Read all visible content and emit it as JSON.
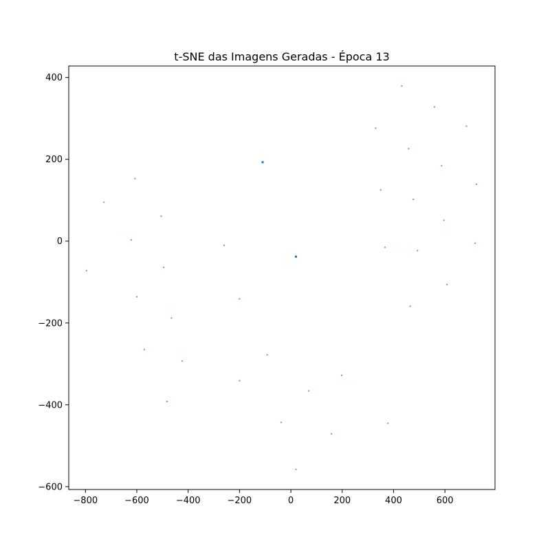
{
  "chart_data": {
    "type": "scatter",
    "title": "t-SNE das Imagens Geradas - Época 13",
    "xlabel": "",
    "ylabel": "",
    "xlim": [
      -865,
      795
    ],
    "ylim": [
      -607,
      428
    ],
    "xticks": [
      -800,
      -600,
      -400,
      -200,
      0,
      200,
      400,
      600
    ],
    "yticks": [
      -600,
      -400,
      -200,
      0,
      200,
      400
    ],
    "grid": false,
    "point_color": "#1f77b4",
    "series": [
      {
        "points": [
          {
            "x": -796,
            "y": -72
          },
          {
            "x": -728,
            "y": 95
          },
          {
            "x": -607,
            "y": 153
          },
          {
            "x": -622,
            "y": 3
          },
          {
            "x": -600,
            "y": -136
          },
          {
            "x": -571,
            "y": -265
          },
          {
            "x": -505,
            "y": 61
          },
          {
            "x": -495,
            "y": -64
          },
          {
            "x": -482,
            "y": -392
          },
          {
            "x": -465,
            "y": -188
          },
          {
            "x": -423,
            "y": -293
          },
          {
            "x": -260,
            "y": -10
          },
          {
            "x": -200,
            "y": -141
          },
          {
            "x": -200,
            "y": -341
          },
          {
            "x": -110,
            "y": 193,
            "highlight": true
          },
          {
            "x": -92,
            "y": -278
          },
          {
            "x": -38,
            "y": -443
          },
          {
            "x": 20,
            "y": -38,
            "highlight": true
          },
          {
            "x": 20,
            "y": -558
          },
          {
            "x": 70,
            "y": -366
          },
          {
            "x": 158,
            "y": -471
          },
          {
            "x": 198,
            "y": -328
          },
          {
            "x": 330,
            "y": 276
          },
          {
            "x": 350,
            "y": 125
          },
          {
            "x": 367,
            "y": -15
          },
          {
            "x": 378,
            "y": -445
          },
          {
            "x": 432,
            "y": 379
          },
          {
            "x": 459,
            "y": 226
          },
          {
            "x": 465,
            "y": -159
          },
          {
            "x": 477,
            "y": 102
          },
          {
            "x": 493,
            "y": -23
          },
          {
            "x": 559,
            "y": 328
          },
          {
            "x": 587,
            "y": 184
          },
          {
            "x": 596,
            "y": 51
          },
          {
            "x": 608,
            "y": -106
          },
          {
            "x": 684,
            "y": 281
          },
          {
            "x": 718,
            "y": -5
          },
          {
            "x": 723,
            "y": 139
          }
        ]
      }
    ]
  }
}
